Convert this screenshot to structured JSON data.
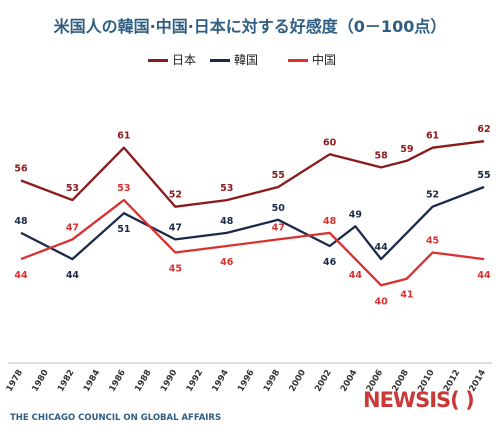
{
  "chart_data": {
    "type": "line",
    "title": "米国人の韓国·中国·日本に対する好感度（0－100点）",
    "x_ticks": [
      "1978",
      "1980",
      "1982",
      "1984",
      "1986",
      "1988",
      "1990",
      "1992",
      "1994",
      "1996",
      "1998",
      "2000",
      "2002",
      "2004",
      "2006",
      "2008",
      "2010",
      "2012",
      "2014"
    ],
    "xlim": [
      1978,
      2014
    ],
    "ylim": [
      35,
      66
    ],
    "grid": false,
    "legend_position": "top",
    "series": [
      {
        "name": "日本",
        "color": "#8b1a1a",
        "x": [
          1978,
          1982,
          1986,
          1990,
          1994,
          1998,
          2002,
          2006,
          2008,
          2010,
          2014
        ],
        "values": [
          56,
          53,
          61,
          52,
          53,
          55,
          60,
          58,
          59,
          61,
          62
        ]
      },
      {
        "name": "韓国",
        "color": "#1c2a4a",
        "x": [
          1978,
          1982,
          1986,
          1990,
          1994,
          1998,
          2002,
          2004,
          2006,
          2010,
          2014
        ],
        "values": [
          48,
          44,
          51,
          47,
          48,
          50,
          46,
          49,
          44,
          52,
          55
        ]
      },
      {
        "name": "中国",
        "color": "#d93030",
        "x": [
          1978,
          1982,
          1986,
          1990,
          1994,
          1998,
          2002,
          2004,
          2006,
          2008,
          2010,
          2014
        ],
        "values": [
          44,
          47,
          53,
          45,
          46,
          47,
          48,
          44,
          40,
          41,
          45,
          44
        ]
      }
    ]
  },
  "source": "THE CHICAGO COUNCIL ON GLOBAL AFFAIRS",
  "watermark": "NEWSIS",
  "watermark_logo": "( )"
}
